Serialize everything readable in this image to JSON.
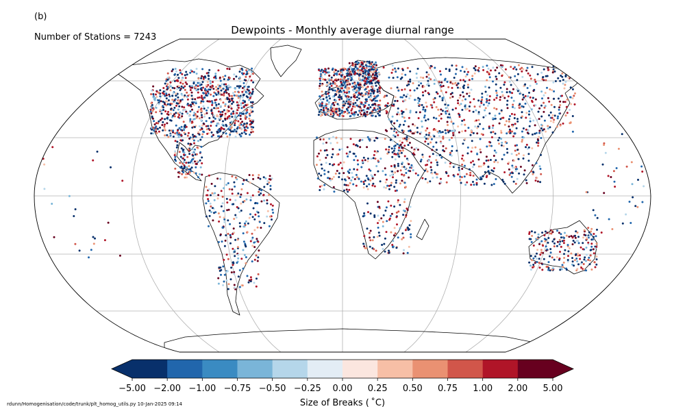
{
  "panel_label": "(b)",
  "title": "Dewpoints - Monthly average diurnal range",
  "station_count_label": "Number of Stations = 7243",
  "footer": "rdunn/Homogenisation/code/trunk/plt_homog_utils.py   10-Jan-2025 09:14",
  "colorbar": {
    "label": "Size of Breaks ( ˚C)",
    "ticks": [
      "−5.00",
      "−2.00",
      "−1.00",
      "−0.75",
      "−0.50",
      "−0.25",
      "0.00",
      "0.25",
      "0.50",
      "0.75",
      "1.00",
      "2.00",
      "5.00"
    ],
    "colors": [
      "#08306b",
      "#2166ac",
      "#3a8bc2",
      "#7ab5d8",
      "#b5d6ea",
      "#e3edf5",
      "#fbe6df",
      "#f7bfa6",
      "#ea9172",
      "#d1564a",
      "#b01528",
      "#67001f"
    ]
  },
  "colors": {
    "coastline": "#000000",
    "gridline": "#b0b0b0"
  }
}
